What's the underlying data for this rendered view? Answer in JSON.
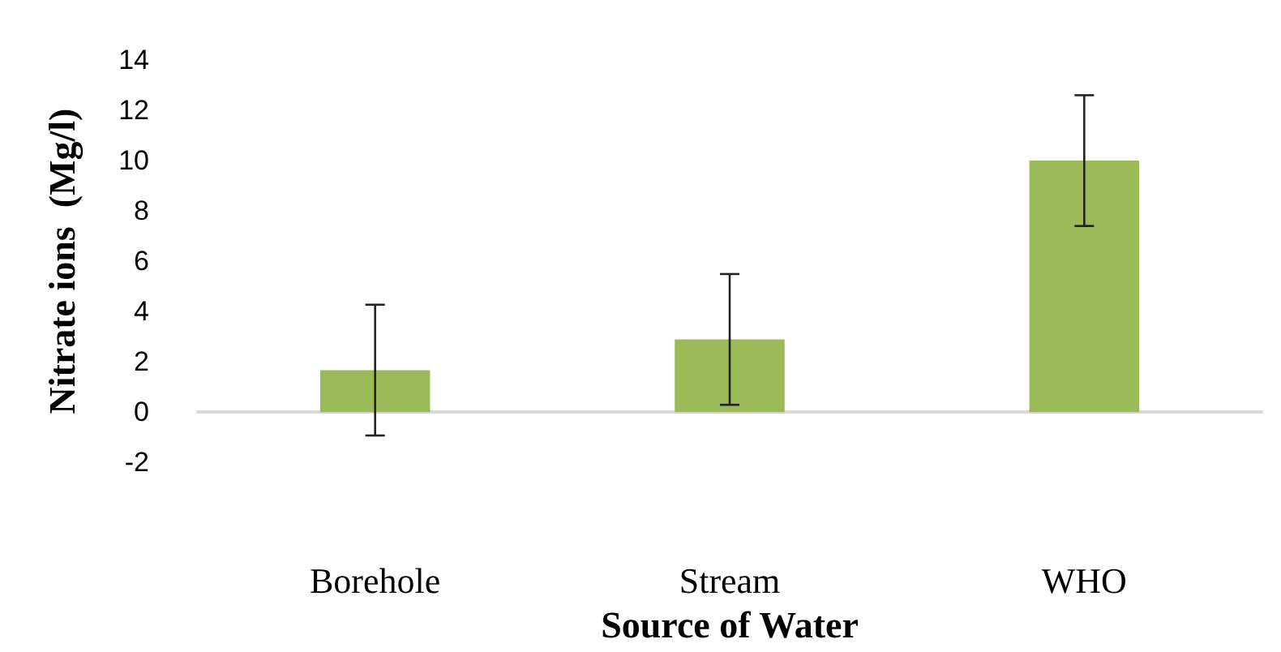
{
  "chart_data": {
    "type": "bar",
    "xlabel": "Source of Water",
    "ylabel": "Nitrate ions  (Mg/l)",
    "categories": [
      "Borehole",
      "Stream",
      "WHO"
    ],
    "values": [
      1.67,
      2.89,
      10.0
    ],
    "errors": [
      2.6,
      2.6,
      2.6
    ],
    "color": "#9bbb59",
    "ylim": [
      -2,
      14
    ],
    "yticks": [
      -2,
      0,
      2,
      4,
      6,
      8,
      10,
      12,
      14
    ]
  }
}
